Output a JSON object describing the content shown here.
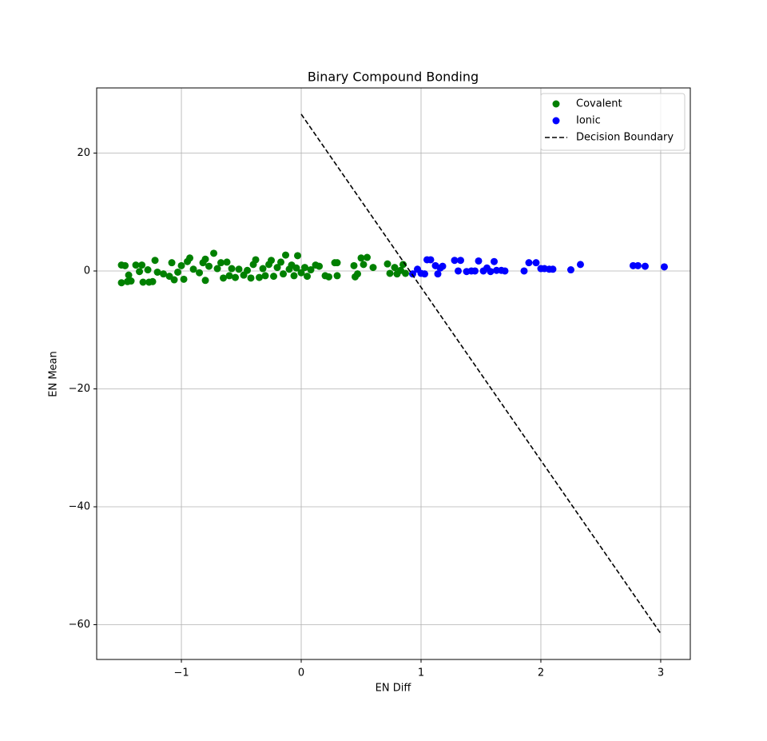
{
  "chart_data": {
    "type": "scatter",
    "title": "Binary Compound Bonding",
    "xlabel": "EN Diff",
    "ylabel": "EN Mean",
    "xlim": [
      -1.707,
      3.247
    ],
    "ylim": [
      -65.9,
      31.05
    ],
    "xticks": [
      {
        "value": -1,
        "label": "−1"
      },
      0,
      1,
      2,
      3
    ],
    "yticks": [
      {
        "value": -60,
        "label": "−60"
      },
      {
        "value": -40,
        "label": "−40"
      },
      {
        "value": -20,
        "label": "−20"
      },
      0,
      20
    ],
    "grid": true,
    "legend": "upper right",
    "series": [
      {
        "name": "Covalent",
        "color": "#008000",
        "kind": "points",
        "x": [
          -1.5,
          -1.5,
          -1.47,
          -1.45,
          -1.44,
          -1.42,
          -1.38,
          -1.35,
          -1.33,
          -1.32,
          -1.28,
          -1.27,
          -1.24,
          -1.22,
          -1.2,
          -1.15,
          -1.1,
          -1.08,
          -1.06,
          -1.03,
          -1.0,
          -0.98,
          -0.95,
          -0.93,
          -0.9,
          -0.85,
          -0.82,
          -0.8,
          -0.8,
          -0.77,
          -0.73,
          -0.7,
          -0.67,
          -0.65,
          -0.62,
          -0.6,
          -0.58,
          -0.55,
          -0.52,
          -0.48,
          -0.45,
          -0.42,
          -0.4,
          -0.38,
          -0.35,
          -0.32,
          -0.3,
          -0.27,
          -0.25,
          -0.23,
          -0.2,
          -0.17,
          -0.15,
          -0.13,
          -0.1,
          -0.08,
          -0.06,
          -0.04,
          -0.03,
          0.0,
          0.03,
          0.05,
          0.08,
          0.12,
          0.15,
          0.2,
          0.23,
          0.28,
          0.3,
          0.3,
          0.44,
          0.45,
          0.47,
          0.5,
          0.52,
          0.55,
          0.6,
          0.72,
          0.74,
          0.78,
          0.8,
          0.83,
          0.85,
          0.87
        ],
        "values": [
          1.0,
          -2.0,
          0.9,
          -1.8,
          -0.7,
          -1.7,
          1.0,
          -0.1,
          1.0,
          -1.9,
          0.2,
          -1.9,
          -1.8,
          1.8,
          -0.2,
          -0.5,
          -0.9,
          1.4,
          -1.5,
          -0.2,
          0.9,
          -1.4,
          1.6,
          2.2,
          0.3,
          -0.3,
          1.4,
          2.0,
          -1.6,
          0.8,
          3.0,
          0.4,
          1.4,
          -1.2,
          1.5,
          -0.8,
          0.4,
          -1.1,
          0.3,
          -0.7,
          0.1,
          -1.2,
          1.1,
          1.9,
          -1.1,
          0.4,
          -0.8,
          1.1,
          1.8,
          -0.9,
          0.6,
          1.5,
          -0.5,
          2.7,
          0.3,
          1.0,
          -0.8,
          0.5,
          2.6,
          -0.3,
          0.6,
          -0.9,
          0.2,
          1.0,
          0.8,
          -0.8,
          -1.0,
          1.4,
          -0.8,
          1.4,
          0.9,
          -1.0,
          -0.5,
          2.2,
          1.1,
          2.3,
          0.6,
          1.2,
          -0.4,
          0.6,
          -0.5,
          0.1,
          1.1,
          -0.4
        ]
      },
      {
        "name": "Ionic",
        "color": "#0000ff",
        "kind": "points",
        "x": [
          0.93,
          0.97,
          1.0,
          1.03,
          1.05,
          1.08,
          1.12,
          1.14,
          1.16,
          1.18,
          1.28,
          1.31,
          1.33,
          1.38,
          1.42,
          1.45,
          1.48,
          1.52,
          1.55,
          1.58,
          1.61,
          1.63,
          1.67,
          1.7,
          1.86,
          1.9,
          1.96,
          2.0,
          2.03,
          2.07,
          2.1,
          2.25,
          2.33,
          2.77,
          2.81,
          2.87,
          3.03
        ],
        "values": [
          -0.5,
          0.3,
          -0.4,
          -0.5,
          1.9,
          1.9,
          0.9,
          -0.5,
          0.5,
          0.8,
          1.8,
          0.0,
          1.8,
          -0.1,
          0.0,
          0.0,
          1.7,
          0.0,
          0.5,
          -0.1,
          1.6,
          0.1,
          0.1,
          0.0,
          0.0,
          1.4,
          1.4,
          0.4,
          0.4,
          0.3,
          0.3,
          0.2,
          1.1,
          0.9,
          0.9,
          0.8,
          0.7
        ]
      },
      {
        "name": "Decision Boundary",
        "color": "#000000",
        "kind": "dashed-line",
        "x": [
          0,
          3
        ],
        "values": [
          26.6,
          -61.5
        ]
      }
    ]
  }
}
